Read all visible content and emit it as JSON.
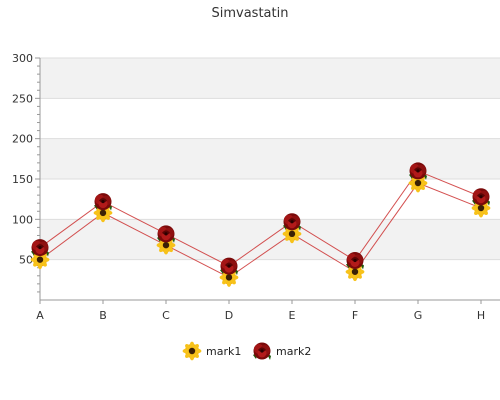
{
  "chart_data": {
    "type": "line",
    "title": "Simvastatin",
    "xlabel": "",
    "ylabel": "",
    "categories": [
      "A",
      "B",
      "C",
      "D",
      "E",
      "F",
      "G",
      "H"
    ],
    "ylim": [
      0,
      300
    ],
    "yticks": [
      50,
      100,
      150,
      200,
      250,
      300
    ],
    "grid": true,
    "legend_position": "bottom",
    "series": [
      {
        "name": "mark1",
        "values": [
          50,
          108,
          68,
          28,
          82,
          35,
          145,
          114
        ],
        "color": "#cc3333",
        "marker": "sunflower-icon"
      },
      {
        "name": "mark2",
        "values": [
          65,
          122,
          82,
          42,
          97,
          49,
          160,
          128
        ],
        "color": "#cc3333",
        "marker": "rose-icon"
      }
    ]
  }
}
